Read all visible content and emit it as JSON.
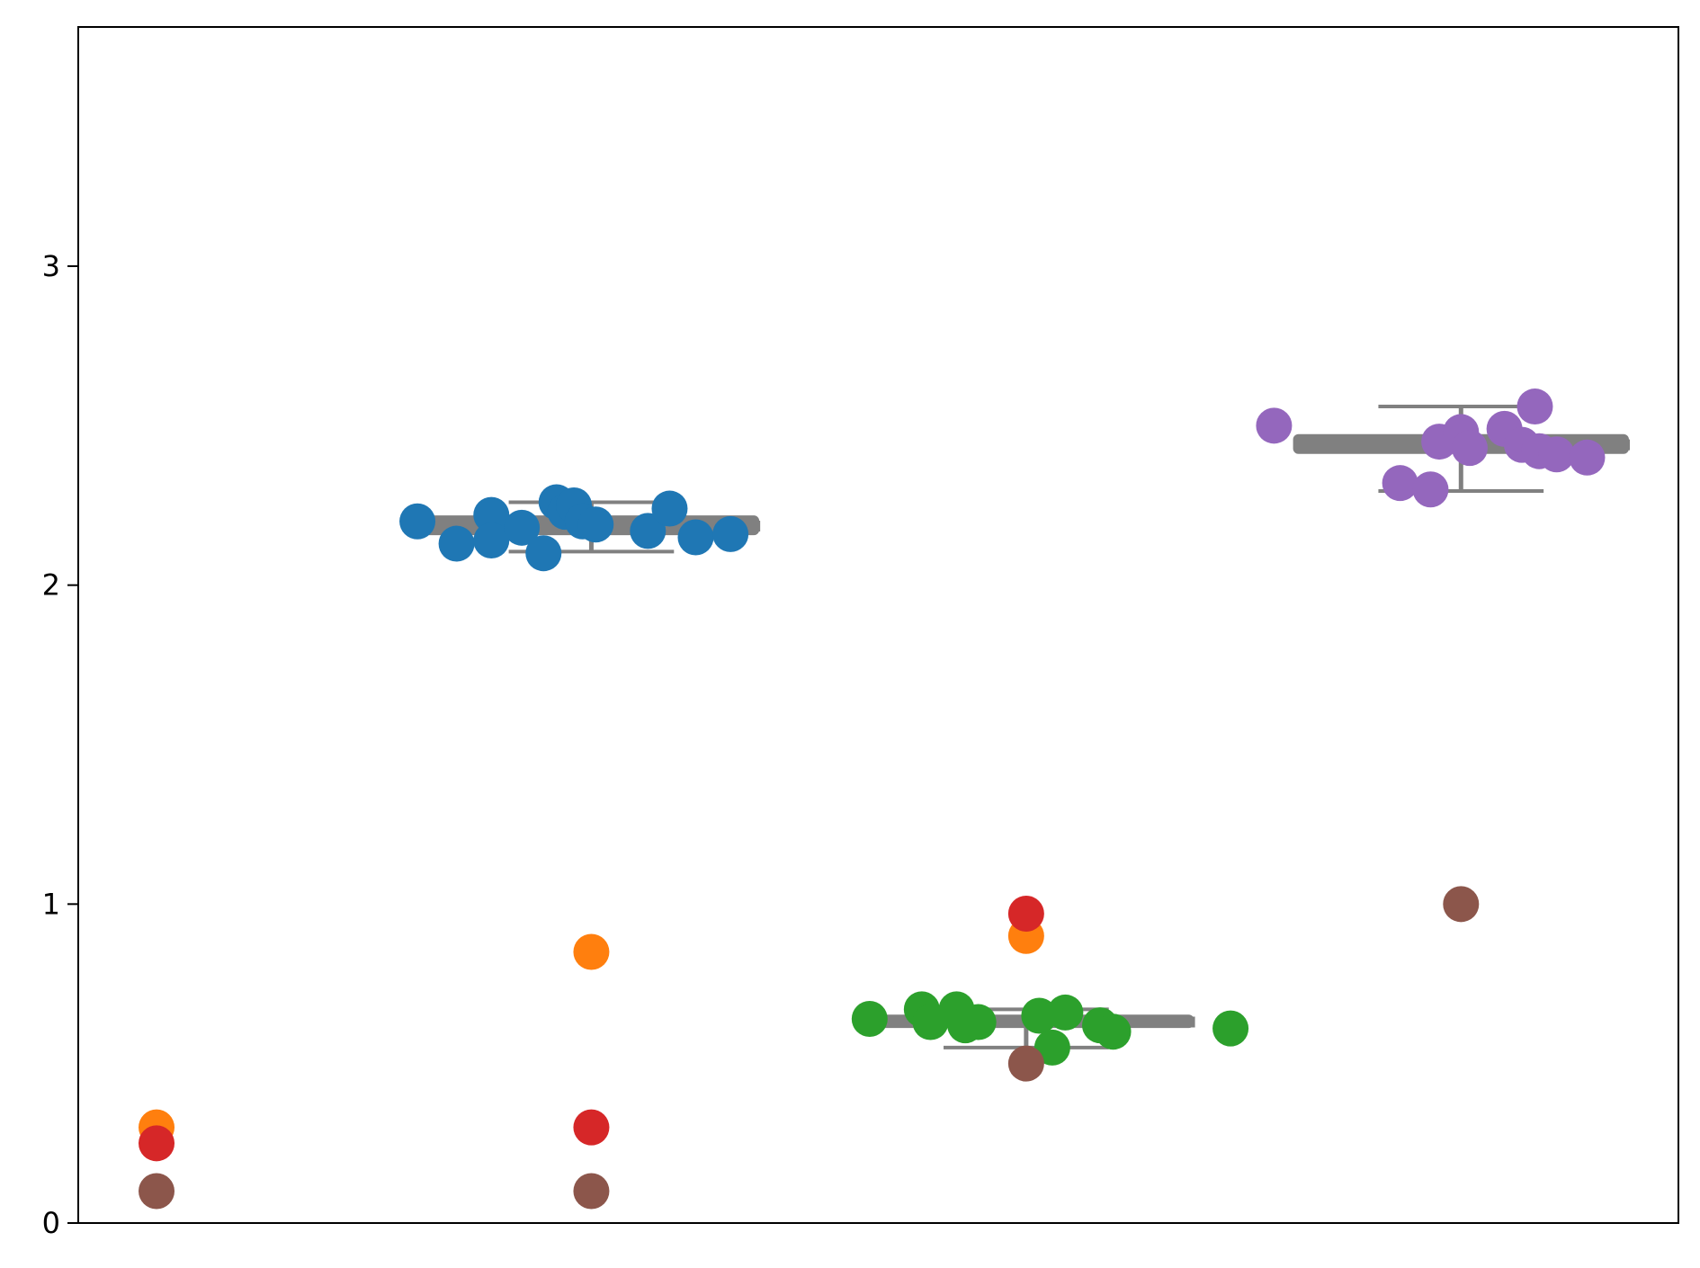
{
  "chart_data": {
    "type": "scatter",
    "title": "",
    "xlabel": "",
    "ylabel": "",
    "ylim": [
      0,
      3.75
    ],
    "xlim": [
      -0.18,
      3.5
    ],
    "y_ticks": [
      {
        "value": 0,
        "label": "0"
      },
      {
        "value": 1,
        "label": "1"
      },
      {
        "value": 2,
        "label": "2"
      },
      {
        "value": 3,
        "label": "3"
      }
    ],
    "x_ticks": [],
    "grid": false,
    "legend": "none",
    "box_color": "#808080",
    "boxes": [
      {
        "x": 1,
        "color": "#808080",
        "q1": 2.165,
        "median": 2.185,
        "q3": 2.21,
        "whisker_low": 2.105,
        "whisker_high": 2.26,
        "half_width": 0.38
      },
      {
        "x": 2,
        "color": "#808080",
        "q1": 0.62,
        "median": 0.63,
        "q3": 0.645,
        "whisker_low": 0.55,
        "whisker_high": 0.67,
        "half_width": 0.38
      },
      {
        "x": 3,
        "color": "#808080",
        "q1": 2.42,
        "median": 2.44,
        "q3": 2.465,
        "whisker_low": 2.295,
        "whisker_high": 2.56,
        "half_width": 0.38
      }
    ],
    "series": [
      {
        "color": "#1f77b4",
        "points": [
          [
            0.6,
            2.2
          ],
          [
            0.69,
            2.13
          ],
          [
            0.77,
            2.22
          ],
          [
            0.77,
            2.14
          ],
          [
            0.84,
            2.18
          ],
          [
            0.89,
            2.1
          ],
          [
            0.92,
            2.26
          ],
          [
            0.94,
            2.23
          ],
          [
            0.96,
            2.25
          ],
          [
            0.98,
            2.2
          ],
          [
            1.01,
            2.19
          ],
          [
            1.13,
            2.17
          ],
          [
            1.18,
            2.24
          ],
          [
            1.24,
            2.15
          ],
          [
            1.32,
            2.16
          ]
        ]
      },
      {
        "color": "#ff7f0e",
        "points": [
          [
            0,
            0.3
          ],
          [
            1,
            0.85
          ],
          [
            2,
            0.9
          ]
        ]
      },
      {
        "color": "#2ca02c",
        "points": [
          [
            1.64,
            0.64
          ],
          [
            1.76,
            0.67
          ],
          [
            1.78,
            0.63
          ],
          [
            1.84,
            0.67
          ],
          [
            1.86,
            0.62
          ],
          [
            1.89,
            0.63
          ],
          [
            2.03,
            0.65
          ],
          [
            2.06,
            0.55
          ],
          [
            2.09,
            0.66
          ],
          [
            2.17,
            0.62
          ],
          [
            2.2,
            0.6
          ],
          [
            2.47,
            0.61
          ]
        ]
      },
      {
        "color": "#d62728",
        "points": [
          [
            0,
            0.25
          ],
          [
            1,
            0.3
          ],
          [
            2,
            0.97
          ]
        ]
      },
      {
        "color": "#9467bd",
        "points": [
          [
            2.57,
            2.5
          ],
          [
            2.86,
            2.32
          ],
          [
            2.93,
            2.3
          ],
          [
            2.95,
            2.45
          ],
          [
            3.0,
            2.48
          ],
          [
            3.02,
            2.43
          ],
          [
            3.1,
            2.49
          ],
          [
            3.14,
            2.44
          ],
          [
            3.17,
            2.56
          ],
          [
            3.18,
            2.42
          ],
          [
            3.22,
            2.41
          ],
          [
            3.29,
            2.4
          ]
        ]
      },
      {
        "color": "#8c564b",
        "points": [
          [
            0,
            0.1
          ],
          [
            1,
            0.1
          ],
          [
            2,
            0.5
          ],
          [
            3,
            1.0
          ]
        ]
      }
    ]
  }
}
